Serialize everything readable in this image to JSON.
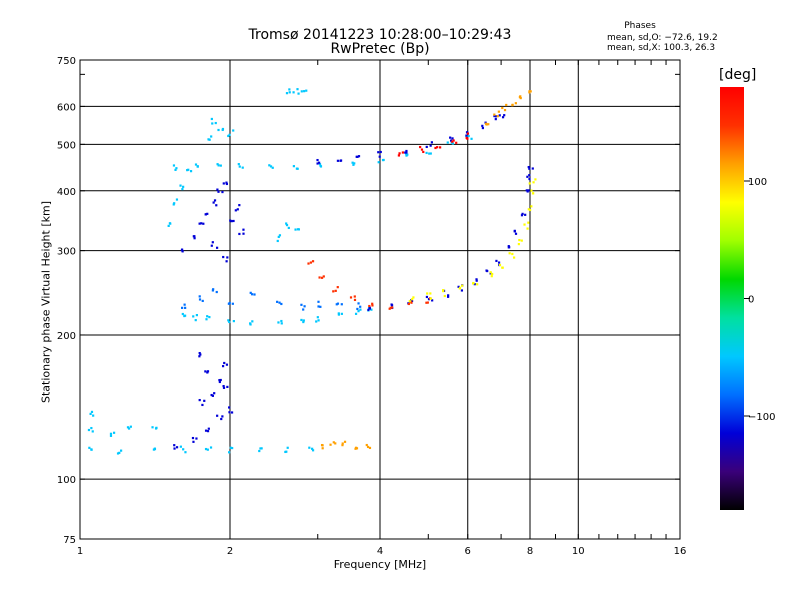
{
  "header": {
    "title": "Tromsø 20141223 10:28:00–10:29:43",
    "subtitle": "RwPretec (Bp)",
    "phase_heading": "Phases",
    "phase_o": "mean, sd,O: −72.6, 19.2",
    "phase_x": "mean, sd,X: 100.3, 26.3"
  },
  "chart_data": {
    "type": "scatter",
    "xlabel": "Frequency [MHz]",
    "ylabel": "Stationary phase Virtual Height [km]",
    "xscale": "log",
    "yscale": "log",
    "xlim": [
      1,
      16
    ],
    "ylim": [
      75,
      750
    ],
    "xticks": [
      "1",
      "2",
      "4",
      "6",
      "8",
      "10",
      "16"
    ],
    "yticks": [
      "75",
      "100",
      "200",
      "300",
      "400",
      "500",
      "600",
      "750"
    ],
    "grid": true,
    "colorbar": {
      "label": "[deg]",
      "range": [
        -180,
        180
      ],
      "ticks": [
        "100",
        "0",
        "−100"
      ],
      "colors": [
        "#000000",
        "#3a007a",
        "#0000d8",
        "#0070ff",
        "#00c8ff",
        "#00e0a0",
        "#00d800",
        "#a0ff00",
        "#ffff00",
        "#ffa000",
        "#ff3000",
        "#ff0000"
      ]
    },
    "series": [
      {
        "values": [
          [
            1.05,
            116
          ],
          [
            1.2,
            115
          ],
          [
            1.4,
            115
          ],
          [
            1.6,
            116
          ],
          [
            1.8,
            116
          ],
          [
            2.0,
            116
          ],
          [
            2.3,
            116
          ],
          [
            2.6,
            116
          ],
          [
            2.9,
            116
          ]
        ],
        "phase": -45
      },
      {
        "values": [
          [
            1.05,
            127
          ],
          [
            1.15,
            125
          ],
          [
            1.25,
            128
          ],
          [
            1.4,
            130
          ],
          [
            1.05,
            137
          ]
        ],
        "phase": -40
      },
      {
        "values": [
          [
            1.55,
            118
          ],
          [
            1.7,
            122
          ],
          [
            1.8,
            128
          ],
          [
            1.9,
            135
          ],
          [
            2.0,
            140
          ],
          [
            1.75,
            145
          ],
          [
            1.85,
            150
          ],
          [
            1.95,
            155
          ],
          [
            1.9,
            160
          ],
          [
            1.8,
            170
          ],
          [
            1.95,
            175
          ],
          [
            1.75,
            182
          ]
        ],
        "phase": -105
      },
      {
        "values": [
          [
            3.05,
            118
          ],
          [
            3.2,
            120
          ],
          [
            3.35,
            120
          ],
          [
            3.55,
            118
          ],
          [
            3.75,
            117
          ]
        ],
        "phase": 95
      },
      {
        "values": [
          [
            1.6,
            222
          ],
          [
            1.7,
            219
          ],
          [
            1.8,
            217
          ],
          [
            2.0,
            215
          ],
          [
            2.2,
            214
          ],
          [
            2.5,
            213
          ],
          [
            2.8,
            214
          ],
          [
            3.0,
            216
          ],
          [
            3.3,
            220
          ],
          [
            3.6,
            224
          ],
          [
            3.8,
            227
          ]
        ],
        "phase": -40
      },
      {
        "values": [
          [
            1.6,
            232
          ],
          [
            1.75,
            240
          ],
          [
            1.85,
            248
          ],
          [
            2.0,
            235
          ],
          [
            2.2,
            245
          ],
          [
            2.5,
            235
          ],
          [
            2.8,
            230
          ],
          [
            3.0,
            233
          ],
          [
            3.3,
            232
          ],
          [
            3.6,
            231
          ]
        ],
        "phase": -75
      },
      {
        "values": [
          [
            3.8,
            227
          ],
          [
            4.2,
            230
          ],
          [
            4.6,
            234
          ],
          [
            5.0,
            240
          ],
          [
            5.4,
            245
          ],
          [
            5.8,
            252
          ],
          [
            6.2,
            260
          ],
          [
            6.6,
            272
          ],
          [
            6.9,
            285
          ],
          [
            7.3,
            305
          ],
          [
            7.5,
            330
          ],
          [
            7.7,
            360
          ],
          [
            7.85,
            400
          ],
          [
            7.95,
            430
          ],
          [
            8.0,
            450
          ]
        ],
        "phase": -110
      },
      {
        "values": [
          [
            2.9,
            283
          ],
          [
            3.05,
            265
          ],
          [
            3.25,
            250
          ],
          [
            3.5,
            240
          ],
          [
            3.8,
            233
          ],
          [
            4.2,
            230
          ],
          [
            4.6,
            233
          ],
          [
            5.0,
            238
          ]
        ],
        "phase": 140
      },
      {
        "values": [
          [
            4.6,
            238
          ],
          [
            5.0,
            242
          ],
          [
            5.4,
            246
          ],
          [
            5.8,
            252
          ],
          [
            6.2,
            258
          ],
          [
            6.6,
            268
          ],
          [
            7.0,
            280
          ],
          [
            7.3,
            295
          ],
          [
            7.6,
            315
          ],
          [
            7.8,
            340
          ],
          [
            7.95,
            370
          ],
          [
            8.0,
            400
          ],
          [
            8.05,
            420
          ]
        ],
        "phase": 80
      },
      {
        "values": [
          [
            1.6,
            300
          ],
          [
            1.7,
            320
          ],
          [
            1.75,
            340
          ],
          [
            1.8,
            360
          ],
          [
            1.85,
            380
          ],
          [
            1.9,
            400
          ],
          [
            1.95,
            420
          ],
          [
            2.0,
            350
          ],
          [
            2.05,
            370
          ],
          [
            1.85,
            310
          ],
          [
            1.95,
            290
          ],
          [
            2.1,
            330
          ]
        ],
        "phase": -115
      },
      {
        "values": [
          [
            1.5,
            340
          ],
          [
            1.55,
            380
          ],
          [
            1.6,
            410
          ],
          [
            1.65,
            440
          ],
          [
            2.5,
            320
          ],
          [
            2.6,
            340
          ],
          [
            2.7,
            330
          ]
        ],
        "phase": -45
      },
      {
        "values": [
          [
            1.55,
            450
          ],
          [
            1.7,
            455
          ],
          [
            1.9,
            460
          ],
          [
            2.1,
            455
          ],
          [
            2.4,
            450
          ],
          [
            2.7,
            450
          ],
          [
            3.0,
            452
          ],
          [
            3.5,
            456
          ],
          [
            4.0,
            465
          ],
          [
            4.5,
            475
          ],
          [
            5.0,
            487
          ],
          [
            5.5,
            500
          ],
          [
            6.0,
            520
          ]
        ],
        "phase": -55
      },
      {
        "values": [
          [
            3.0,
            460
          ],
          [
            3.3,
            465
          ],
          [
            3.6,
            470
          ],
          [
            4.0,
            480
          ],
          [
            4.5,
            490
          ],
          [
            5.0,
            502
          ],
          [
            5.5,
            515
          ],
          [
            6.0,
            530
          ],
          [
            6.4,
            550
          ],
          [
            6.8,
            570
          ],
          [
            7.0,
            580
          ]
        ],
        "phase": -110
      },
      {
        "values": [
          [
            4.4,
            478
          ],
          [
            4.8,
            490
          ],
          [
            5.2,
            500
          ],
          [
            5.6,
            508
          ],
          [
            6.0,
            522
          ]
        ],
        "phase": 150
      },
      {
        "values": [
          [
            6.5,
            560
          ],
          [
            6.8,
            580
          ],
          [
            7.1,
            600
          ],
          [
            7.4,
            615
          ],
          [
            7.7,
            628
          ],
          [
            7.9,
            640
          ]
        ],
        "phase": 90
      },
      {
        "values": [
          [
            1.8,
            520
          ],
          [
            1.9,
            540
          ],
          [
            2.0,
            530
          ],
          [
            1.85,
            560
          ],
          [
            2.6,
            650
          ],
          [
            2.7,
            650
          ],
          [
            2.8,
            650
          ]
        ],
        "phase": -45
      }
    ]
  }
}
